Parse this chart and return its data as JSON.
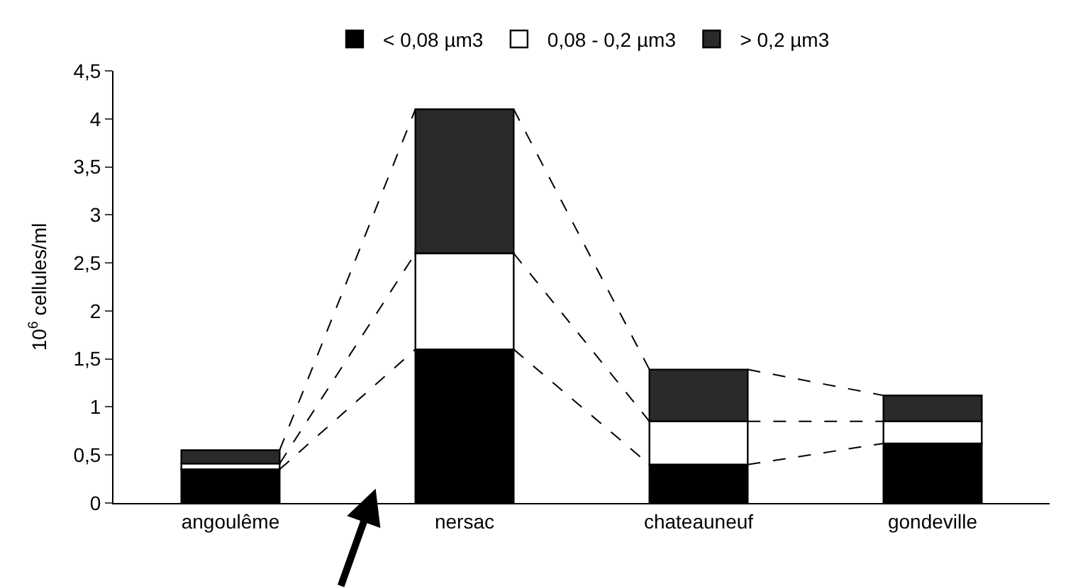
{
  "chart_data": {
    "type": "bar",
    "stacked": true,
    "ylabel": "10$^{6}$ cellules/ml",
    "categories": [
      "angoulême",
      "nersac",
      "chateauneuf",
      "gondeville"
    ],
    "series": [
      {
        "name": "< 0,08 µm3",
        "color": "#000000",
        "values": [
          0.35,
          1.6,
          0.4,
          0.62
        ]
      },
      {
        "name": "0,08 - 0,2 µm3",
        "color": "#ffffff",
        "values": [
          0.06,
          1.0,
          0.45,
          0.23
        ]
      },
      {
        "name": "> 0,2 µm3",
        "color": "#2a2a2a",
        "values": [
          0.14,
          1.5,
          0.54,
          0.27
        ]
      }
    ],
    "ylim": [
      0,
      4.5
    ],
    "yticks": [
      0,
      {
        "value": 0.5,
        "label": "0,5"
      },
      1,
      {
        "value": 1.5,
        "label": "1,5"
      },
      2,
      {
        "value": 2.5,
        "label": "2,5"
      },
      3,
      {
        "value": 3.5,
        "label": "3,5"
      },
      4,
      {
        "value": 4.5,
        "label": "4,5"
      }
    ],
    "legend": "top",
    "line_style": "dashed"
  }
}
